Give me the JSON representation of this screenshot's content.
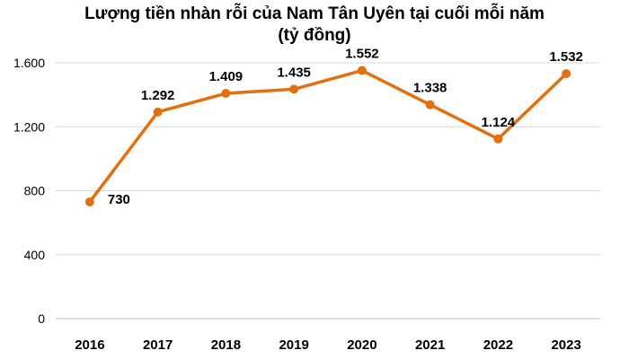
{
  "chart_data": {
    "type": "line",
    "title": "Lượng tiền nhàn rỗi của Nam Tân Uyên tại cuối mỗi năm",
    "subtitle": "(tỷ đồng)",
    "categories": [
      "2016",
      "2017",
      "2018",
      "2019",
      "2020",
      "2021",
      "2022",
      "2023"
    ],
    "series": [
      {
        "values": [
          730,
          1292,
          1409,
          1435,
          1552,
          1338,
          1124,
          1532
        ],
        "labels": [
          "730",
          "1.292",
          "1.409",
          "1.435",
          "1.552",
          "1.338",
          "1.124",
          "1.532"
        ],
        "color": "#E07010"
      }
    ],
    "yticks": [
      0,
      400,
      800,
      1200,
      1600
    ],
    "ytick_labels": [
      "0",
      "400",
      "800",
      "1.200",
      "1.600"
    ],
    "ylim": [
      0,
      1600
    ],
    "grid": true,
    "legend": "none",
    "colors": {
      "grid": "#D9D9D9",
      "axis": "#BFBFBF"
    }
  }
}
